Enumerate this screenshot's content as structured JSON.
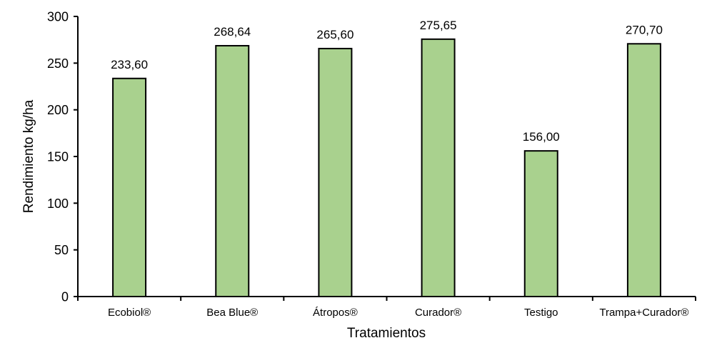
{
  "chart_data": {
    "type": "bar",
    "title": "",
    "xlabel": "Tratamientos",
    "ylabel": "Rendimiento kg/ha",
    "categories": [
      "Ecobiol®",
      "Bea Blue®",
      "Átropos®",
      "Curador®",
      "Testigo",
      "Trampa+Curador®"
    ],
    "values": [
      233.6,
      268.64,
      265.6,
      275.65,
      156.0,
      270.7
    ],
    "value_labels": [
      "233,60",
      "268,64",
      "265,60",
      "275,65",
      "156,00",
      "270,70"
    ],
    "ylim": [
      0,
      300
    ],
    "yticks": [
      0,
      50,
      100,
      150,
      200,
      250,
      300
    ],
    "grid": false,
    "legend": null,
    "colors": {
      "bar_fill": "#A9D18E",
      "bar_stroke": "#000000",
      "axis": "#000000"
    }
  }
}
